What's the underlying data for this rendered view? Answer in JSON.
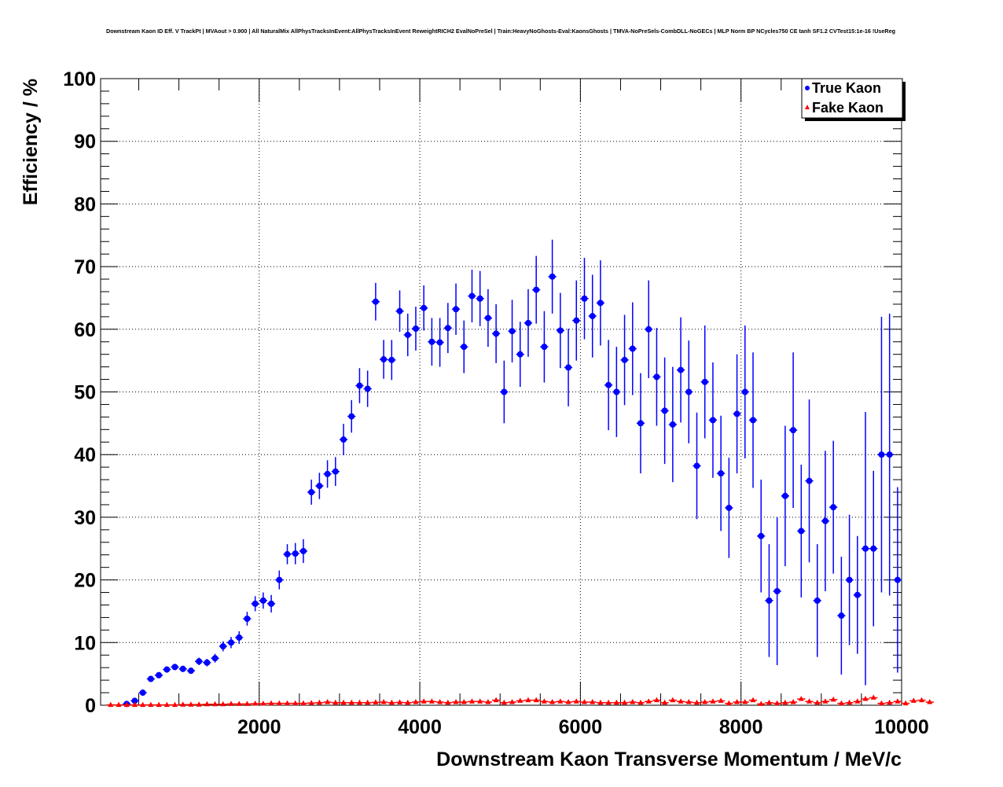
{
  "chart_data": {
    "type": "scatter",
    "title": "Downstream Kaon ID Eff. V TrackPt | MVAout > 0.900 | All NaturalMix AllPhysTracksInEvent:AllPhysTracksInEvent ReweightRICH2 EvalNoPreSel | Train:HeavyNoGhosts-Eval:KaonsGhosts | TMVA-NoPreSels-CombDLL-NoGECs | MLP Norm BP NCycles750 CE tanh SF1.2 CVTest15:1e-16 !UseReg",
    "xlabel": "Downstream Kaon Transverse Momentum / MeV/c",
    "ylabel": "Efficiency / %",
    "xlim": [
      25,
      10000
    ],
    "ylim": [
      0,
      100
    ],
    "xticks": [
      "2000",
      "4000",
      "6000",
      "8000",
      "10000"
    ],
    "yticks": [
      "0",
      "10",
      "20",
      "30",
      "40",
      "50",
      "60",
      "70",
      "80",
      "90",
      "100"
    ],
    "grid": true,
    "legend_position": "top-right",
    "bin_width": 100,
    "series": [
      {
        "name": "True Kaon",
        "color": "#0000ff",
        "marker": "circle",
        "x_start": 350,
        "values": [
          0.2,
          0.7,
          2,
          4.2,
          4.8,
          5.7,
          6.1,
          5.8,
          5.5,
          7,
          6.8,
          7.5,
          9.4,
          10,
          10.8,
          13.8,
          16.2,
          16.7,
          16.2,
          20,
          24.1,
          24.2,
          24.6,
          34,
          35,
          36.9,
          37.3,
          42.4,
          46.1,
          51,
          50.5,
          64.4,
          55.2,
          55.1,
          62.9,
          59.1,
          60.1,
          63.4,
          58,
          57.9,
          60.2,
          63.2,
          57.2,
          65.3,
          64.9,
          61.8,
          59.3,
          50,
          59.7,
          56,
          61,
          66.3,
          57.2,
          68.4,
          59.8,
          53.9,
          61.4,
          64.9,
          62.1,
          64.2,
          51.1,
          50,
          55.1,
          56.9,
          45,
          60,
          52.4,
          47,
          44.8,
          53.5,
          50,
          38.2,
          51.6,
          45.5,
          37,
          31.5,
          46.5,
          50,
          45.5,
          27,
          16.7,
          18.2,
          33.4,
          43.9,
          27.8,
          35.8,
          16.7,
          29.4,
          31.6,
          14.3,
          20,
          17.6,
          25,
          25,
          40,
          40,
          20
        ],
        "errors": [
          0.2,
          0.3,
          0.4,
          0.5,
          0.5,
          0.5,
          0.5,
          0.5,
          0.5,
          0.6,
          0.6,
          0.7,
          0.8,
          0.9,
          1.0,
          1.1,
          1.2,
          1.3,
          1.4,
          1.5,
          1.6,
          1.7,
          1.9,
          2.0,
          2.1,
          2.2,
          2.3,
          2.5,
          2.6,
          2.8,
          2.9,
          3.0,
          3.1,
          3.2,
          3.3,
          3.4,
          3.5,
          3.6,
          3.8,
          3.9,
          4.0,
          4.1,
          4.2,
          4.2,
          4.4,
          4.6,
          4.7,
          5.0,
          5.0,
          5.2,
          5.4,
          5.4,
          5.7,
          5.9,
          6.0,
          6.2,
          6.4,
          6.5,
          6.6,
          6.8,
          7.2,
          7.2,
          7.2,
          7.4,
          8.0,
          7.8,
          7.8,
          8.5,
          9.2,
          8.4,
          8.2,
          8.5,
          9.0,
          9.2,
          9.2,
          8.0,
          9.5,
          10.6,
          10.8,
          9.0,
          9.0,
          11.8,
          11.2,
          12.4,
          10.6,
          13.0,
          9.0,
          11.2,
          10.6,
          9.4,
          10.4,
          9.4,
          21.8,
          12.4,
          22.0,
          22.5,
          14.8
        ]
      },
      {
        "name": "Fake Kaon",
        "color": "#ff0000",
        "marker": "triangle",
        "x_start": 150,
        "values": [
          0.05,
          0.05,
          0.05,
          0.05,
          0.05,
          0.05,
          0.05,
          0.05,
          0.05,
          0.1,
          0.1,
          0.1,
          0.15,
          0.15,
          0.15,
          0.2,
          0.2,
          0.2,
          0.25,
          0.25,
          0.3,
          0.3,
          0.3,
          0.3,
          0.3,
          0.35,
          0.4,
          0.5,
          0.4,
          0.4,
          0.4,
          0.4,
          0.4,
          0.45,
          0.5,
          0.4,
          0.45,
          0.4,
          0.5,
          0.6,
          0.6,
          0.5,
          0.4,
          0.5,
          0.5,
          0.6,
          0.6,
          0.5,
          0.8,
          0.4,
          0.5,
          0.7,
          0.8,
          0.8,
          0.6,
          0.5,
          0.6,
          0.5,
          0.6,
          0.5,
          0.5,
          0.4,
          0.4,
          0.4,
          0.4,
          0.5,
          0.4,
          0.6,
          0.8,
          0.4,
          0.8,
          0.6,
          0.5,
          0.4,
          0.5,
          0.6,
          0.7,
          0.3,
          0.5,
          0.5,
          0.8,
          0.2,
          0.4,
          0.3,
          0.4,
          0.5,
          1.0,
          0.6,
          0.4,
          0.6,
          0.9,
          0.3,
          0.4,
          0.6,
          1.0,
          1.2,
          0.3,
          0.4,
          0.6,
          0.3,
          0.7,
          0.8,
          0.5
        ]
      }
    ]
  }
}
